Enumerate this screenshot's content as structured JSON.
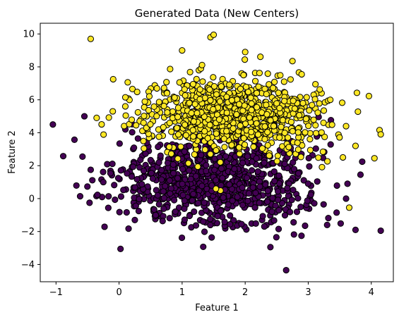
{
  "chart_data": {
    "type": "scatter",
    "title": "Generated Data (New Centers)",
    "xlabel": "Feature 1",
    "ylabel": "Feature 2",
    "xlim": [
      -1.25,
      4.35
    ],
    "ylim": [
      -5.05,
      10.65
    ],
    "xticks": [
      -1,
      0,
      1,
      2,
      3,
      4
    ],
    "yticks": [
      -4,
      -2,
      0,
      2,
      4,
      6,
      8,
      10
    ],
    "grid": false,
    "legend": "none",
    "marker_edge_color": "#000000",
    "series": [
      {
        "color": "#440154",
        "center": [
          1.5,
          1.0
        ],
        "spread": [
          0.75,
          1.35
        ],
        "count": 900,
        "outliers": [
          [
            -1.05,
            4.5
          ],
          [
            -0.55,
            5.0
          ],
          [
            -0.58,
            2.55
          ],
          [
            -0.45,
            1.75
          ],
          [
            -0.25,
            1.0
          ],
          [
            0.25,
            -1.3
          ],
          [
            4.15,
            -1.95
          ],
          [
            3.75,
            -1.9
          ],
          [
            2.65,
            -4.35
          ],
          [
            2.4,
            -2.95
          ],
          [
            3.3,
            -1.6
          ],
          [
            3.6,
            0.0
          ],
          [
            2.95,
            -1.65
          ],
          [
            3.45,
            -0.85
          ],
          [
            0.1,
            4.2
          ]
        ]
      },
      {
        "color": "#fde725",
        "center": [
          1.8,
          5.2
        ],
        "spread": [
          0.7,
          1.15
        ],
        "count": 900,
        "outliers": [
          [
            -0.45,
            9.7
          ],
          [
            1.45,
            9.8
          ],
          [
            1.5,
            9.95
          ],
          [
            1.0,
            9.0
          ],
          [
            2.0,
            8.9
          ],
          [
            4.15,
            3.9
          ],
          [
            4.05,
            2.45
          ],
          [
            3.75,
            3.2
          ],
          [
            3.65,
            -0.55
          ],
          [
            3.6,
            4.4
          ],
          [
            3.55,
            2.5
          ],
          [
            3.35,
            6.0
          ],
          [
            2.75,
            8.35
          ],
          [
            0.1,
            6.15
          ],
          [
            -0.1,
            5.3
          ]
        ]
      }
    ]
  }
}
